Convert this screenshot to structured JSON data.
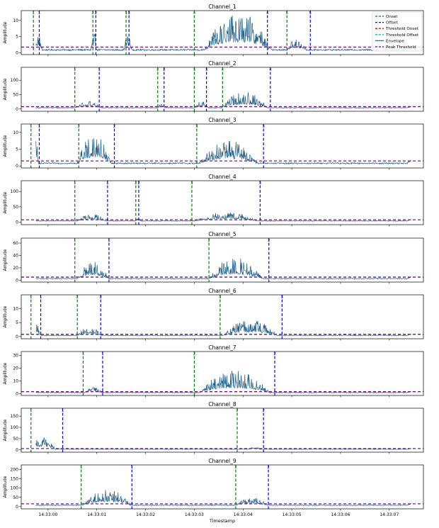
{
  "figure": {
    "xlabel": "Timestamp",
    "x_ticks": [
      "14:33:00",
      "14:33:01",
      "14:33:02",
      "14:33:03",
      "14:33:04",
      "14:33:05",
      "14:33:06",
      "14:33:07"
    ],
    "x_tick_values": [
      0.0,
      1.0,
      2.0,
      3.0,
      4.0,
      5.0,
      6.0,
      7.0
    ],
    "x_range": [
      -0.55,
      7.7
    ],
    "legend": {
      "placement": "top-right",
      "entries": [
        {
          "label": "Onset",
          "color": "#008000",
          "dash": true
        },
        {
          "label": "Offset",
          "color": "#0000ff",
          "dash": true
        },
        {
          "label": "Threshold Onset",
          "color": "#ff0000",
          "dash": true
        },
        {
          "label": "Threshold Offset",
          "color": "#00bcd4",
          "dash": true
        },
        {
          "label": "Envelope",
          "color": "#1f77b4",
          "dash": false
        },
        {
          "label": "Peak Threshold",
          "color": "#800080",
          "dash": true
        }
      ]
    },
    "colors": {
      "envelope": "#1f5f8b",
      "onset": "#008000",
      "offset": "#0000ff",
      "peak": "#800080",
      "threshold_offset": "#00bcd4"
    }
  },
  "chart_data": [
    {
      "type": "line",
      "title": "Channel_1",
      "ylabel": "Amplitude",
      "ylim": [
        -0.5,
        13
      ],
      "yticks": [
        0,
        5,
        10
      ],
      "peak_threshold": 1.8,
      "onsets": [
        {
          "t": -0.3,
          "label": "1"
        },
        {
          "t": 0.92,
          "label": "2"
        },
        {
          "t": 1.6,
          "label": "3"
        },
        {
          "t": 3.0,
          "label": "4"
        },
        {
          "t": 4.9,
          "label": "5"
        }
      ],
      "offsets": [
        {
          "t": -0.18,
          "label": "1"
        },
        {
          "t": 0.98,
          "label": "2"
        },
        {
          "t": 1.66,
          "label": "3"
        },
        {
          "t": 4.5,
          "label": "4"
        },
        {
          "t": 5.38,
          "label": "5"
        }
      ],
      "bursts": [
        [
          -0.33,
          -0.12,
          5
        ],
        [
          0.88,
          1.0,
          5
        ],
        [
          1.55,
          1.72,
          4
        ],
        [
          3.2,
          4.6,
          10
        ],
        [
          4.9,
          5.3,
          3
        ]
      ]
    },
    {
      "type": "line",
      "title": "Channel_2",
      "ylabel": "Amplitude",
      "ylim": [
        -8,
        145
      ],
      "yticks": [
        0,
        50,
        100
      ],
      "peak_threshold": 8,
      "onsets": [
        {
          "t": 0.55,
          "label": "1"
        },
        {
          "t": 2.25,
          "label": "2"
        },
        {
          "t": 3.0,
          "label": "3"
        },
        {
          "t": 3.58,
          "label": "4"
        }
      ],
      "offsets": [
        {
          "t": 1.05,
          "label": "1"
        },
        {
          "t": 2.38,
          "label": "2"
        },
        {
          "t": 3.25,
          "label": "3"
        },
        {
          "t": 4.56,
          "label": "4"
        }
      ],
      "bursts": [
        [
          0.55,
          1.1,
          20
        ],
        [
          2.25,
          2.4,
          15
        ],
        [
          3.0,
          3.3,
          20
        ],
        [
          3.55,
          4.5,
          50
        ]
      ]
    },
    {
      "type": "line",
      "title": "Channel_3",
      "ylabel": "Amplitude",
      "ylim": [
        -0.6,
        12.5
      ],
      "yticks": [
        0,
        5,
        10
      ],
      "peak_threshold": 1.5,
      "onsets": [
        {
          "t": -0.35,
          "label": "1"
        },
        {
          "t": 0.63,
          "label": "2"
        },
        {
          "t": 3.05,
          "label": "3"
        }
      ],
      "offsets": [
        {
          "t": -0.18,
          "label": "1"
        },
        {
          "t": 1.36,
          "label": "2"
        },
        {
          "t": 4.42,
          "label": "3"
        }
      ],
      "bursts": [
        [
          -0.35,
          -0.2,
          9
        ],
        [
          0.6,
          1.3,
          8
        ],
        [
          3.1,
          4.3,
          6
        ]
      ]
    },
    {
      "type": "line",
      "title": "Channel_4",
      "ylabel": "Amplitude",
      "ylim": [
        -8,
        135
      ],
      "yticks": [
        0,
        50,
        100
      ],
      "peak_threshold": 8,
      "onsets": [
        {
          "t": 0.55,
          "label": "1"
        },
        {
          "t": 1.8,
          "label": "2"
        },
        {
          "t": 2.95,
          "label": "3"
        }
      ],
      "offsets": [
        {
          "t": 1.22,
          "label": "1"
        },
        {
          "t": 1.86,
          "label": "2"
        },
        {
          "t": 4.35,
          "label": "3"
        }
      ],
      "bursts": [
        [
          0.6,
          1.2,
          20
        ],
        [
          1.78,
          1.9,
          10
        ],
        [
          3.0,
          4.3,
          25
        ]
      ]
    },
    {
      "type": "line",
      "title": "Channel_5",
      "ylabel": "Amplitude",
      "ylim": [
        -3,
        68
      ],
      "yticks": [
        0,
        20,
        40,
        60
      ],
      "peak_threshold": 5,
      "onsets": [
        {
          "t": 0.55,
          "label": "1"
        },
        {
          "t": 3.3,
          "label": "2"
        }
      ],
      "offsets": [
        {
          "t": 1.25,
          "label": "1"
        },
        {
          "t": 4.53,
          "label": "2"
        }
      ],
      "bursts": [
        [
          0.6,
          1.25,
          25
        ],
        [
          3.3,
          4.4,
          30
        ]
      ]
    },
    {
      "type": "line",
      "title": "Channel_6",
      "ylabel": "Amplitude",
      "ylim": [
        -0.8,
        15
      ],
      "yticks": [
        0,
        5,
        10
      ],
      "peak_threshold": 0.8,
      "onsets": [
        {
          "t": -0.35,
          "label": "1"
        },
        {
          "t": 0.6,
          "label": "2"
        },
        {
          "t": 3.53,
          "label": "3"
        }
      ],
      "offsets": [
        {
          "t": -0.15,
          "label": "1"
        },
        {
          "t": 1.08,
          "label": "2"
        },
        {
          "t": 4.8,
          "label": "3"
        }
      ],
      "bursts": [
        [
          -0.35,
          -0.15,
          4
        ],
        [
          0.6,
          1.1,
          3
        ],
        [
          3.6,
          4.7,
          5
        ]
      ]
    },
    {
      "type": "line",
      "title": "Channel_7",
      "ylabel": "Amplitude",
      "ylim": [
        -1.5,
        33
      ],
      "yticks": [
        0,
        10,
        20,
        30
      ],
      "peak_threshold": 1.5,
      "onsets": [
        {
          "t": 0.72,
          "label": "1"
        },
        {
          "t": 3.0,
          "label": "2"
        }
      ],
      "offsets": [
        {
          "t": 1.12,
          "label": "1"
        },
        {
          "t": 4.65,
          "label": "2"
        }
      ],
      "bursts": [
        [
          0.75,
          1.1,
          4
        ],
        [
          3.1,
          4.55,
          15
        ]
      ]
    },
    {
      "type": "line",
      "title": "Channel_8",
      "ylabel": "Amplitude",
      "ylim": [
        -10,
        185
      ],
      "yticks": [
        0,
        50,
        100,
        150
      ],
      "peak_threshold": 6,
      "onsets": [
        {
          "t": -0.35,
          "label": "1"
        },
        {
          "t": 3.88,
          "label": "2"
        }
      ],
      "offsets": [
        {
          "t": 0.3,
          "label": "1"
        },
        {
          "t": 4.42,
          "label": "2"
        }
      ],
      "bursts": [
        [
          -0.35,
          0.15,
          50
        ],
        [
          4.1,
          4.35,
          10
        ]
      ]
    },
    {
      "type": "line",
      "title": "Channel_9",
      "ylabel": "Amplitude",
      "ylim": [
        -12,
        225
      ],
      "yticks": [
        0,
        50,
        100,
        150,
        200
      ],
      "peak_threshold": 15,
      "onsets": [
        {
          "t": 0.68,
          "label": "1"
        },
        {
          "t": 3.85,
          "label": "2"
        }
      ],
      "offsets": [
        {
          "t": 1.72,
          "label": "1"
        },
        {
          "t": 4.52,
          "label": "2"
        }
      ],
      "bursts": [
        [
          0.7,
          1.7,
          80
        ],
        [
          3.85,
          4.5,
          40
        ]
      ]
    }
  ]
}
